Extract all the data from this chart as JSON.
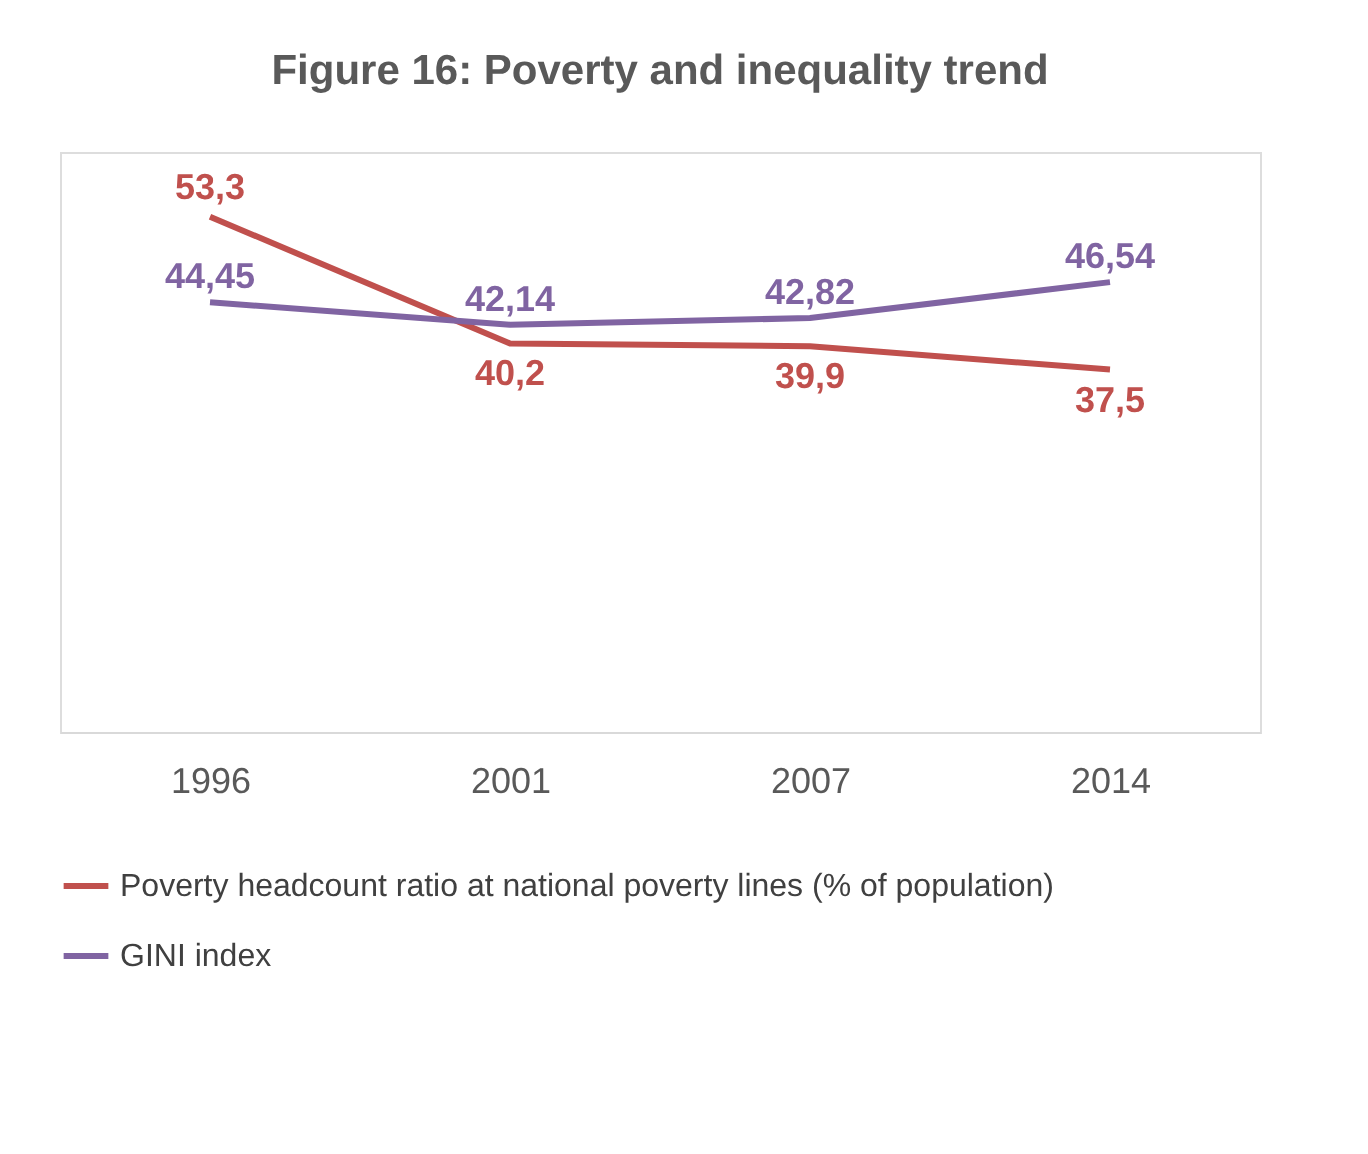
{
  "chart_data": {
    "type": "line",
    "title": "Figure 16: Poverty and inequality trend",
    "categories": [
      "1996",
      "2001",
      "2007",
      "2014"
    ],
    "series": [
      {
        "name": "Poverty headcount ratio at national poverty lines (% of population)",
        "color": "#c0504d",
        "values": [
          53.3,
          40.2,
          39.9,
          37.5
        ],
        "value_labels": [
          "53,3",
          "40,2",
          "39,9",
          "37,5"
        ]
      },
      {
        "name": "GINI index",
        "color": "#8064a2",
        "values": [
          44.45,
          42.14,
          42.82,
          46.54
        ],
        "value_labels": [
          "44,45",
          "42,14",
          "42,82",
          "46,54"
        ]
      }
    ],
    "ylim": [
      0,
      60
    ],
    "tick_labels": "x",
    "grid": false,
    "legend": "bottom",
    "marker": "none",
    "line_style": "solid"
  }
}
